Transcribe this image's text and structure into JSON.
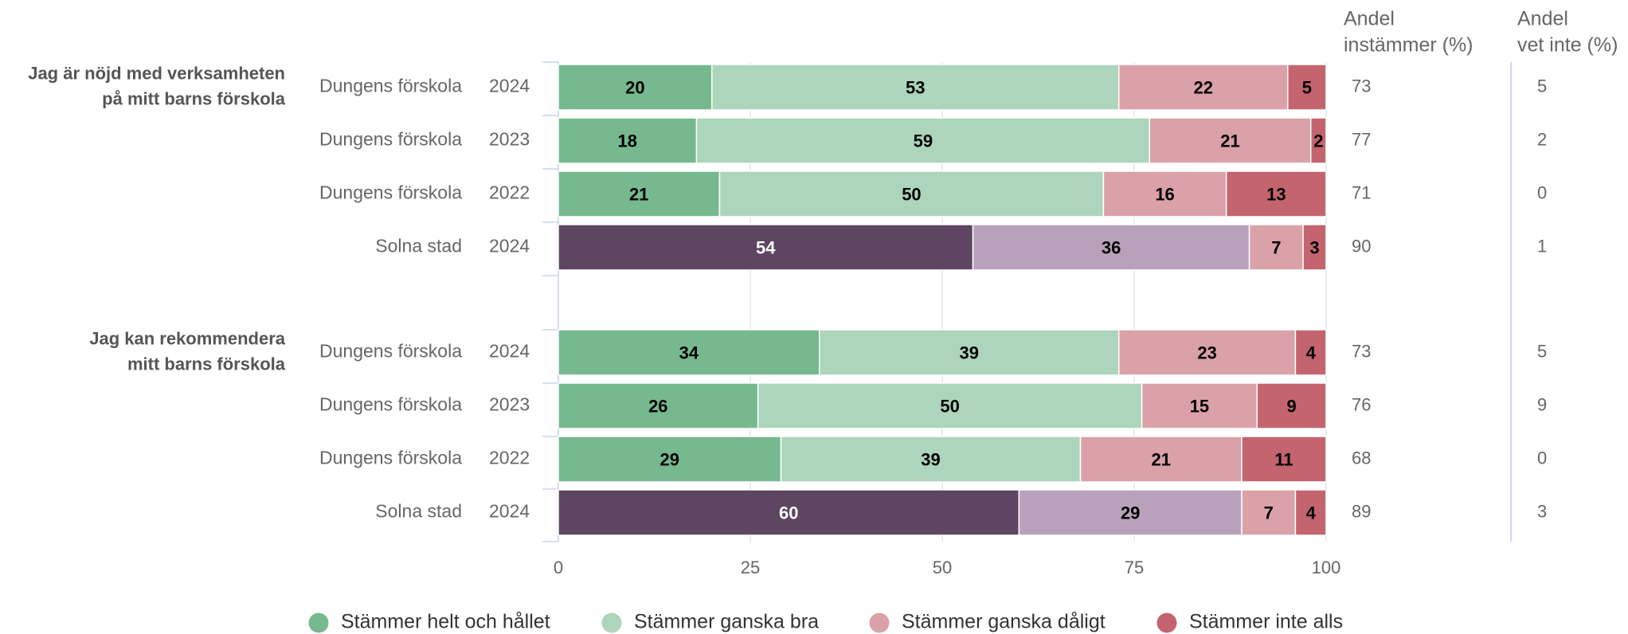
{
  "chart_data": {
    "type": "bar",
    "orientation": "horizontal",
    "stacked": true,
    "xlim": [
      0,
      100
    ],
    "x_ticks": [
      0,
      25,
      50,
      75,
      100
    ],
    "grid": true,
    "legend_position": "bottom",
    "series": [
      {
        "name": "Stämmer helt och hållet",
        "color": "#76b98f"
      },
      {
        "name": "Stämmer ganska bra",
        "color": "#acd5bb"
      },
      {
        "name": "Stämmer ganska dåligt",
        "color": "#dba1a8"
      },
      {
        "name": "Stämmer inte alls",
        "color": "#c4646f"
      }
    ],
    "reference_colors": [
      "#5e4562",
      "#b9a1bb",
      "#dba1a8",
      "#c4646f"
    ],
    "column_headers": [
      {
        "line1": "Andel",
        "line2": "instämmer (%)"
      },
      {
        "line1": "Andel",
        "line2": "vet inte (%)"
      }
    ],
    "groups": [
      {
        "question": [
          "Jag är nöjd med verksamheten",
          "på mitt barns förskola"
        ],
        "rows": [
          {
            "unit": "Dungens förskola",
            "year": "2024",
            "values": [
              20,
              53,
              22,
              5
            ],
            "andel_instammer": "73",
            "andel_vet_inte": "5",
            "reference": false
          },
          {
            "unit": "Dungens förskola",
            "year": "2023",
            "values": [
              18,
              59,
              21,
              2
            ],
            "andel_instammer": "77",
            "andel_vet_inte": "2",
            "reference": false
          },
          {
            "unit": "Dungens förskola",
            "year": "2022",
            "values": [
              21,
              50,
              16,
              13
            ],
            "andel_instammer": "71",
            "andel_vet_inte": "0",
            "reference": false
          },
          {
            "unit": "Solna stad",
            "year": "2024",
            "values": [
              54,
              36,
              7,
              3
            ],
            "andel_instammer": "90",
            "andel_vet_inte": "1",
            "reference": true
          }
        ]
      },
      {
        "question": [
          "Jag kan rekommendera",
          "mitt barns förskola"
        ],
        "rows": [
          {
            "unit": "Dungens förskola",
            "year": "2024",
            "values": [
              34,
              39,
              23,
              4
            ],
            "andel_instammer": "73",
            "andel_vet_inte": "5",
            "reference": false
          },
          {
            "unit": "Dungens förskola",
            "year": "2023",
            "values": [
              26,
              50,
              15,
              9
            ],
            "andel_instammer": "76",
            "andel_vet_inte": "9",
            "reference": false
          },
          {
            "unit": "Dungens förskola",
            "year": "2022",
            "values": [
              29,
              39,
              21,
              11
            ],
            "andel_instammer": "68",
            "andel_vet_inte": "0",
            "reference": false
          },
          {
            "unit": "Solna stad",
            "year": "2024",
            "values": [
              60,
              29,
              7,
              4
            ],
            "andel_instammer": "89",
            "andel_vet_inte": "3",
            "reference": true
          }
        ]
      }
    ]
  }
}
